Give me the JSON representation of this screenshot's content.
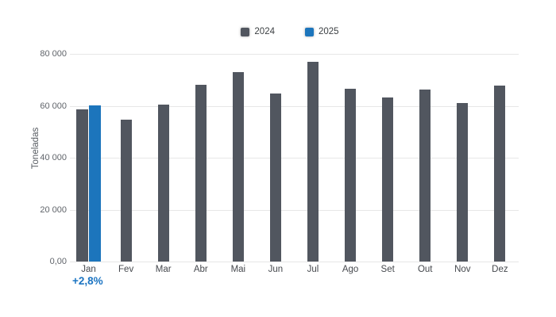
{
  "chart_data": {
    "type": "bar",
    "title": "",
    "ylabel": "Toneladas",
    "xlabel": "",
    "categories": [
      "Jan",
      "Fev",
      "Mar",
      "Abr",
      "Mai",
      "Jun",
      "Jul",
      "Ago",
      "Set",
      "Out",
      "Nov",
      "Dez"
    ],
    "series": [
      {
        "name": "2024",
        "color": "#51565f",
        "values": [
          58700,
          54600,
          60500,
          68200,
          73100,
          64600,
          76800,
          66700,
          63300,
          66400,
          61100,
          67800
        ]
      },
      {
        "name": "2025",
        "color": "#1c75bc",
        "values": [
          60300,
          null,
          null,
          null,
          null,
          null,
          null,
          null,
          null,
          null,
          null,
          null
        ]
      }
    ],
    "ylim": [
      0,
      80000
    ],
    "yticks": [
      {
        "value": 0,
        "label": "0,00"
      },
      {
        "value": 20000,
        "label": "20 000"
      },
      {
        "value": 40000,
        "label": "40 000"
      },
      {
        "value": 60000,
        "label": "60 000"
      },
      {
        "value": 80000,
        "label": "80 000"
      }
    ],
    "grid": true,
    "legend_position": "top-center",
    "annotation": {
      "text": "+2,8%",
      "category": "Jan",
      "color": "#1b74c2"
    }
  }
}
